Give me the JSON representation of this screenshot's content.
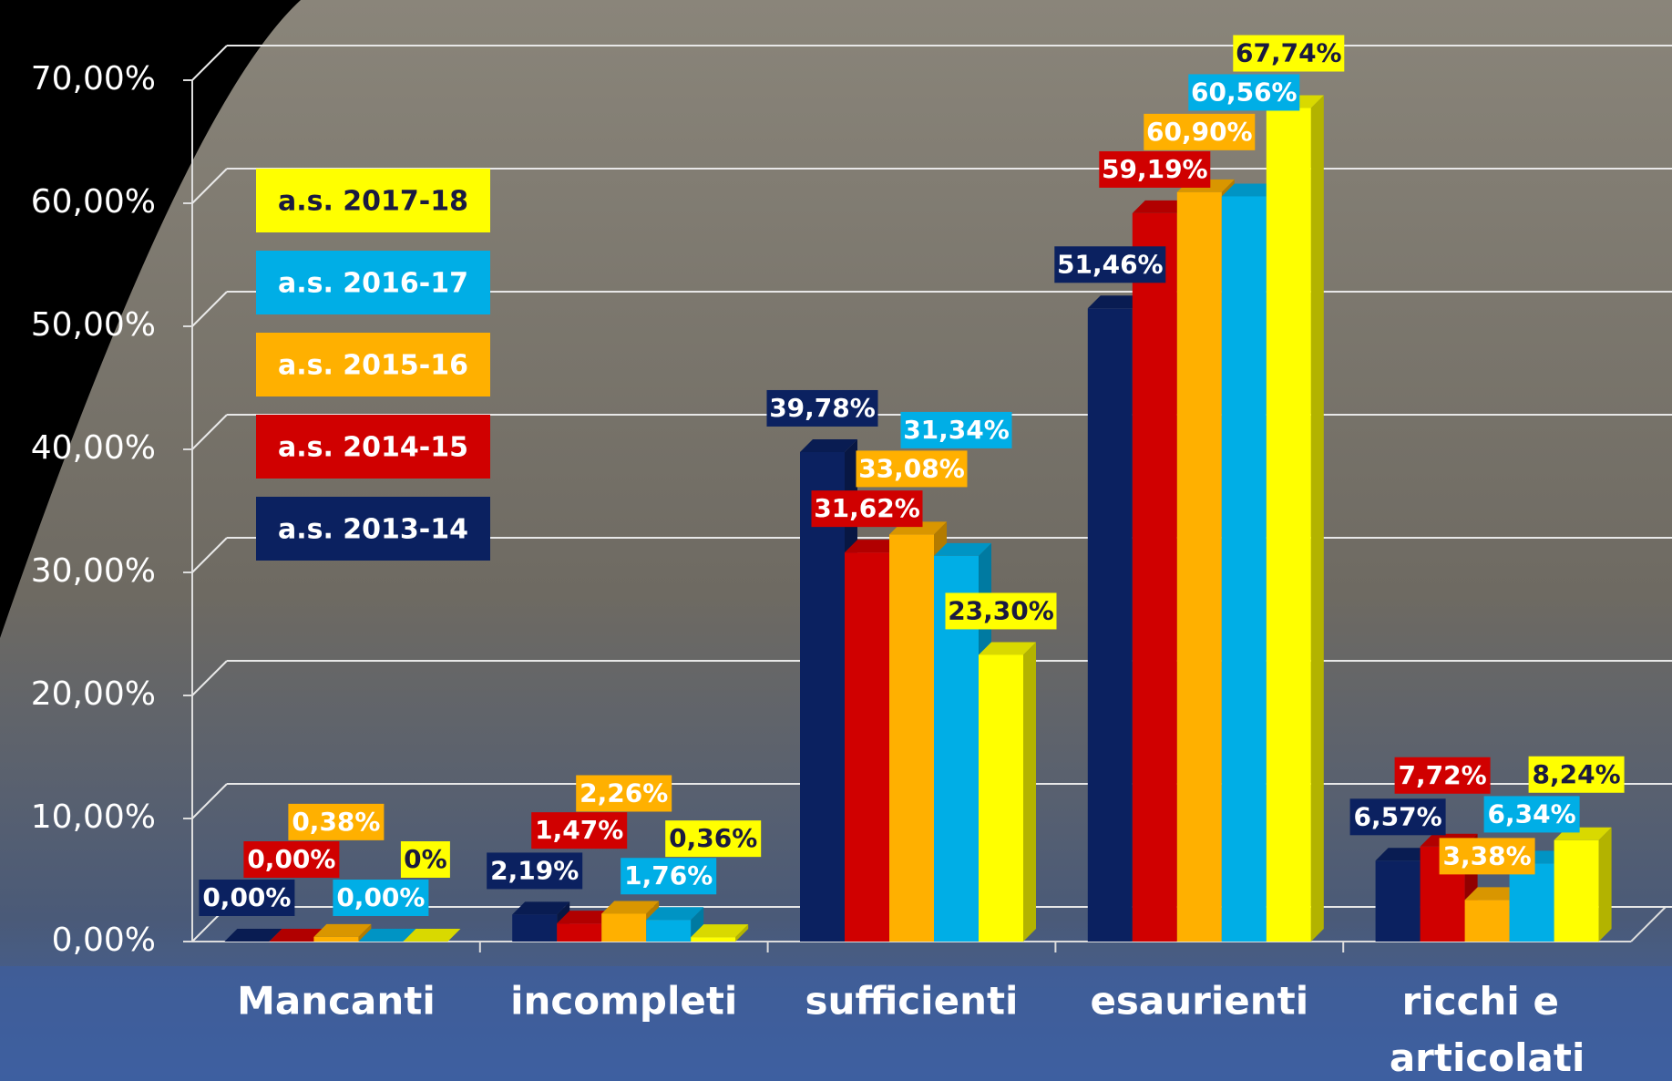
{
  "chart_data": {
    "type": "bar",
    "categories": [
      "Mancanti",
      "incompleti",
      "sufficienti",
      "esaurienti",
      "ricchi e articolati"
    ],
    "series": [
      {
        "name": "a.s. 2013-14",
        "color": "#0b2160",
        "values": [
          0,
          2.19,
          39.78,
          51.46,
          6.57
        ],
        "value_labels": [
          "0,00%",
          "2,19%",
          "39,78%",
          "51,46%",
          "6,57%"
        ]
      },
      {
        "name": "a.s. 2014-15",
        "color": "#d00000",
        "values": [
          0,
          1.47,
          31.62,
          59.19,
          7.72
        ],
        "value_labels": [
          "0,00%",
          "1,47%",
          "31,62%",
          "59,19%",
          "7,72%"
        ]
      },
      {
        "name": "a.s. 2015-16",
        "color": "#ffb000",
        "values": [
          0.38,
          2.26,
          33.08,
          60.9,
          3.38
        ],
        "value_labels": [
          "0,38%",
          "2,26%",
          "33,08%",
          "60,90%",
          "3,38%"
        ]
      },
      {
        "name": "a.s. 2016-17",
        "color": "#00aee6",
        "values": [
          0,
          1.76,
          31.34,
          60.56,
          6.34
        ],
        "value_labels": [
          "0,00%",
          "1,76%",
          "31,34%",
          "60,56%",
          "6,34%"
        ]
      },
      {
        "name": "a.s. 2017-18",
        "color": "#ffff00",
        "values": [
          0,
          0.36,
          23.3,
          67.74,
          8.24
        ],
        "value_labels": [
          "0%",
          "0,36%",
          "23,30%",
          "67,74%",
          "8,24%"
        ]
      }
    ],
    "ylim": [
      0,
      70
    ],
    "yticks": [
      {
        "value": 0,
        "label": "0,00%"
      },
      {
        "value": 10,
        "label": "10,00%"
      },
      {
        "value": 20,
        "label": "20,00%"
      },
      {
        "value": 30,
        "label": "30,00%"
      },
      {
        "value": 40,
        "label": "40,00%"
      },
      {
        "value": 50,
        "label": "50,00%"
      },
      {
        "value": 60,
        "label": "60,00%"
      },
      {
        "value": 70,
        "label": "70,00%"
      }
    ],
    "grid": true
  }
}
